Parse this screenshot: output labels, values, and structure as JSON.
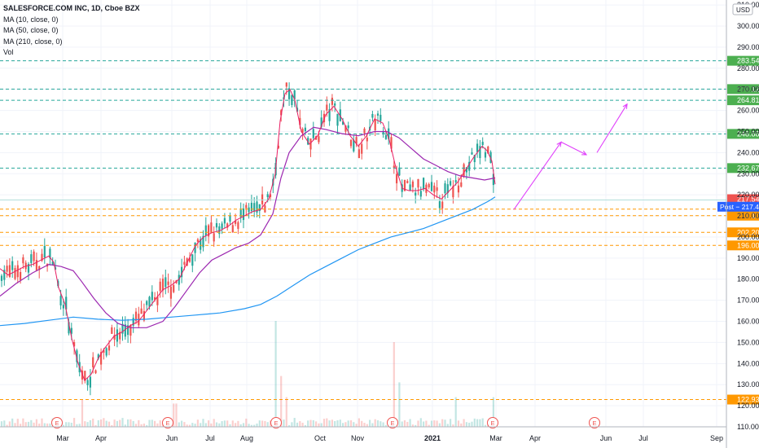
{
  "legend": {
    "title": "SALESFORCE.COM INC, 1D, Cboe BZX",
    "items": [
      "MA (10, close, 0)",
      "MA (50, close, 0)",
      "MA (210, close, 0)",
      "Vol"
    ]
  },
  "currency_badge": "USD",
  "chart_data": {
    "type": "candlestick",
    "y_ticks": [
      110,
      120,
      130,
      140,
      150,
      160,
      170,
      180,
      190,
      200,
      210,
      220,
      230,
      240,
      250,
      260,
      270,
      280,
      290,
      300,
      310
    ],
    "ylim": [
      106,
      313
    ],
    "x_ticks": [
      "Mar",
      "Apr",
      "Jun",
      "Jul",
      "Aug",
      "Oct",
      "Nov",
      "2021",
      "Mar",
      "Apr",
      "Jun",
      "Jul",
      "Sep"
    ],
    "x_tick_bold": [
      false,
      false,
      false,
      false,
      false,
      false,
      false,
      true,
      false,
      false,
      false,
      false,
      false
    ],
    "green_levels": [
      {
        "value": 283.54,
        "label": "283.54"
      },
      {
        "value": 270.12,
        "label": "270.12"
      },
      {
        "value": 264.81,
        "label": "264.81"
      },
      {
        "value": 248.88,
        "label": "248.88"
      },
      {
        "value": 232.67,
        "label": "232.67"
      }
    ],
    "orange_levels": [
      {
        "value": 213.2,
        "label": "213.20"
      },
      {
        "value": 210.1,
        "label": "210.10"
      },
      {
        "value": 202.2,
        "label": "202.20"
      },
      {
        "value": 196.0,
        "label": "196.00"
      },
      {
        "value": 122.93,
        "label": "122.93"
      }
    ],
    "last_price": {
      "value": 217.54,
      "label": "217.54"
    },
    "post_price": {
      "value": 217.44,
      "label": "Post − 217.44"
    },
    "earnings_marker": "E",
    "ma10_points": [
      [
        0,
        185
      ],
      [
        10,
        182
      ],
      [
        20,
        184
      ],
      [
        30,
        186
      ],
      [
        40,
        187
      ],
      [
        50,
        189
      ],
      [
        60,
        191
      ],
      [
        66,
        188
      ],
      [
        72,
        176
      ],
      [
        80,
        168
      ],
      [
        88,
        152
      ],
      [
        96,
        140
      ],
      [
        104,
        132
      ],
      [
        112,
        135
      ],
      [
        120,
        142
      ],
      [
        128,
        147
      ],
      [
        140,
        153
      ],
      [
        150,
        155
      ],
      [
        160,
        158
      ],
      [
        170,
        160
      ],
      [
        180,
        165
      ],
      [
        190,
        170
      ],
      [
        200,
        175
      ],
      [
        210,
        177
      ],
      [
        220,
        180
      ],
      [
        230,
        188
      ],
      [
        240,
        196
      ],
      [
        250,
        200
      ],
      [
        260,
        202
      ],
      [
        270,
        203
      ],
      [
        280,
        205
      ],
      [
        290,
        208
      ],
      [
        300,
        210
      ],
      [
        310,
        212
      ],
      [
        320,
        213
      ],
      [
        330,
        218
      ],
      [
        338,
        230
      ],
      [
        344,
        255
      ],
      [
        350,
        268
      ],
      [
        356,
        270
      ],
      [
        362,
        265
      ],
      [
        370,
        250
      ],
      [
        380,
        244
      ],
      [
        390,
        248
      ],
      [
        400,
        258
      ],
      [
        410,
        262
      ],
      [
        420,
        256
      ],
      [
        430,
        248
      ],
      [
        440,
        243
      ],
      [
        450,
        248
      ],
      [
        460,
        256
      ],
      [
        470,
        254
      ],
      [
        478,
        246
      ],
      [
        486,
        233
      ],
      [
        494,
        223
      ],
      [
        502,
        222
      ],
      [
        512,
        222
      ],
      [
        522,
        223
      ],
      [
        532,
        220
      ],
      [
        542,
        218
      ],
      [
        552,
        222
      ],
      [
        562,
        226
      ],
      [
        572,
        232
      ],
      [
        582,
        238
      ],
      [
        592,
        243
      ],
      [
        598,
        241
      ],
      [
        604,
        236
      ],
      [
        608,
        225
      ]
    ],
    "ma50_points": [
      [
        0,
        172
      ],
      [
        20,
        178
      ],
      [
        40,
        183
      ],
      [
        60,
        187
      ],
      [
        75,
        186
      ],
      [
        90,
        184
      ],
      [
        100,
        179
      ],
      [
        115,
        171
      ],
      [
        130,
        164
      ],
      [
        145,
        159
      ],
      [
        160,
        157
      ],
      [
        180,
        157
      ],
      [
        200,
        160
      ],
      [
        215,
        167
      ],
      [
        230,
        175
      ],
      [
        245,
        183
      ],
      [
        260,
        189
      ],
      [
        275,
        192
      ],
      [
        290,
        195
      ],
      [
        305,
        197
      ],
      [
        320,
        201
      ],
      [
        335,
        211
      ],
      [
        345,
        228
      ],
      [
        355,
        240
      ],
      [
        370,
        248
      ],
      [
        385,
        252
      ],
      [
        400,
        251
      ],
      [
        420,
        249
      ],
      [
        440,
        248
      ],
      [
        460,
        250
      ],
      [
        475,
        250
      ],
      [
        490,
        247
      ],
      [
        505,
        242
      ],
      [
        520,
        237
      ],
      [
        535,
        234
      ],
      [
        550,
        231
      ],
      [
        565,
        229
      ],
      [
        580,
        228
      ],
      [
        595,
        227
      ],
      [
        608,
        228
      ]
    ],
    "ma210_points": [
      [
        0,
        158
      ],
      [
        30,
        159
      ],
      [
        60,
        160.5
      ],
      [
        90,
        162
      ],
      [
        120,
        161
      ],
      [
        150,
        160.5
      ],
      [
        180,
        161
      ],
      [
        210,
        162
      ],
      [
        240,
        163
      ],
      [
        270,
        164
      ],
      [
        300,
        166
      ],
      [
        320,
        168
      ],
      [
        340,
        172
      ],
      [
        360,
        177
      ],
      [
        380,
        182
      ],
      [
        400,
        186
      ],
      [
        420,
        190
      ],
      [
        440,
        194
      ],
      [
        460,
        197
      ],
      [
        480,
        200
      ],
      [
        500,
        202
      ],
      [
        520,
        204
      ],
      [
        540,
        207
      ],
      [
        560,
        210
      ],
      [
        580,
        213
      ],
      [
        600,
        217
      ],
      [
        608,
        219
      ]
    ],
    "projection_points": [
      [
        631,
        213
      ],
      [
        689,
        245
      ],
      [
        720,
        239
      ],
      [
        733,
        240
      ],
      [
        770,
        263
      ]
    ],
    "volume_baseline": 110,
    "volume_top": 160,
    "volume_spikes": [
      [
        100,
        123
      ],
      [
        215,
        121
      ],
      [
        338,
        160
      ],
      [
        344,
        134
      ],
      [
        352,
        124
      ],
      [
        484,
        150
      ],
      [
        490,
        131
      ],
      [
        560,
        124
      ],
      [
        606,
        124
      ]
    ]
  }
}
